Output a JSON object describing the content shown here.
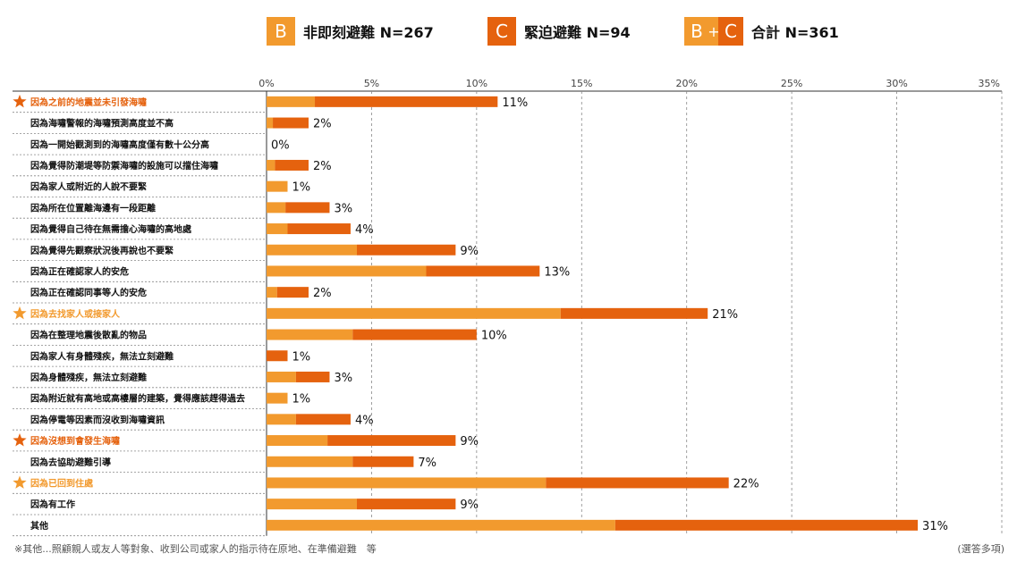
{
  "legend": {
    "b_box": "B",
    "b_label": "非即刻避難 N=267",
    "c_box": "C",
    "c_label": "緊迫避難 N=94",
    "bc_box_b": "B",
    "bc_box_plus": "+",
    "bc_box_c": "C",
    "bc_label": "合計 N=361"
  },
  "colors": {
    "b": "#f29a2e",
    "c": "#e5620e",
    "star_highlight": "#e5620e",
    "star_secondary": "#f29a2e",
    "highlight_text": "#e5620e"
  },
  "chart_data": {
    "type": "bar",
    "orientation": "horizontal",
    "stacked": true,
    "xlim": [
      0,
      35
    ],
    "xticks": [
      "0%",
      "5%",
      "10%",
      "15%",
      "20%",
      "25%",
      "30%",
      "35%"
    ],
    "grid": true,
    "categories": [
      "因為之前的地震並未引發海嘯",
      "因為海嘯警報的海嘯預測高度並不高",
      "因為一開始觀測到的海嘯高度僅有數十公分高",
      "因為覺得防潮堤等防禦海嘯的設施可以擋住海嘯",
      "因為家人或附近的人說不要緊",
      "因為所在位置離海邊有一段距離",
      "因為覺得自己待在無需擔心海嘯的高地處",
      "因為覺得先觀察狀況後再說也不要緊",
      "因為正在確認家人的安危",
      "因為正在確認同事等人的安危",
      "因為去找家人或接家人",
      "因為在整理地震後散亂的物品",
      "因為家人有身體殘疾，無法立刻避難",
      "因為身體殘疾，無法立刻避難",
      "因為附近就有高地或高樓層的建築，覺得應該趕得過去",
      "因為停電等因素而沒收到海嘯資訊",
      "因為沒想到會發生海嘯",
      "因為去協助避難引導",
      "因為已回到住處",
      "因為有工作",
      "其他"
    ],
    "highlight": [
      "star",
      "",
      "",
      "",
      "",
      "",
      "",
      "",
      "",
      "",
      "star-light",
      "",
      "",
      "",
      "",
      "",
      "star",
      "",
      "star-light",
      "",
      ""
    ],
    "series": [
      {
        "name": "B",
        "values": [
          2.3,
          0.3,
          0,
          0.4,
          1.0,
          0.9,
          1.0,
          4.3,
          7.6,
          0.5,
          14.0,
          4.1,
          0,
          1.4,
          1.0,
          1.4,
          2.9,
          4.1,
          13.3,
          4.3,
          16.6
        ]
      },
      {
        "name": "C",
        "values": [
          8.7,
          1.7,
          0,
          1.6,
          0,
          2.1,
          3.0,
          4.7,
          5.4,
          1.5,
          7.0,
          5.9,
          1.0,
          1.6,
          0,
          2.6,
          6.1,
          2.9,
          8.7,
          4.7,
          14.4
        ]
      }
    ],
    "total_labels": [
      "11%",
      "2%",
      "0%",
      "2%",
      "1%",
      "3%",
      "4%",
      "9%",
      "13%",
      "2%",
      "21%",
      "10%",
      "1%",
      "3%",
      "1%",
      "4%",
      "9%",
      "7%",
      "22%",
      "9%",
      "31%"
    ]
  },
  "footnote": "※其他...照顧親人或友人等對象、收到公司或家人的指示待在原地、在準備避難　等",
  "multi_select": "(選答多項)"
}
